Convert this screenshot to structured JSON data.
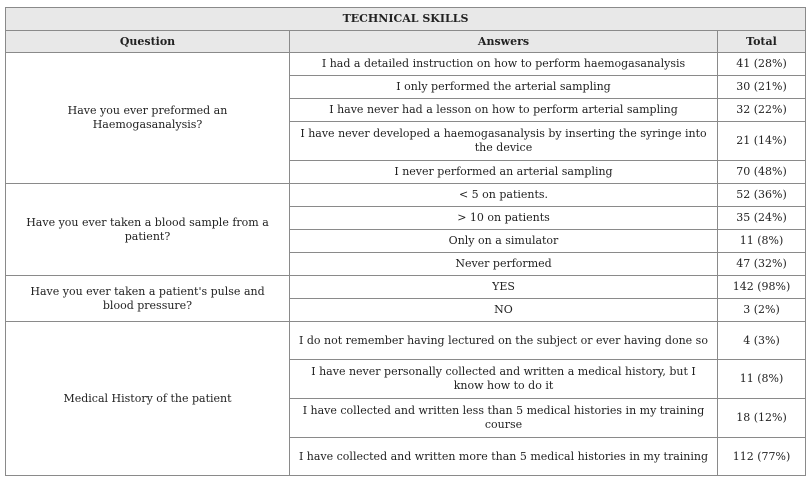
{
  "title": "TECHNICAL SKILLS",
  "headers": {
    "question": "Question",
    "answers": "Answers",
    "total": "Total"
  },
  "groups": [
    {
      "question": "Have you ever preformed an Haemogasanalysis?",
      "rows": [
        {
          "answer": "I had a detailed instruction on how to perform haemogasanalysis",
          "total": "41 (28%)"
        },
        {
          "answer": "I only performed the arterial sampling",
          "total": "30 (21%)"
        },
        {
          "answer": "I have never had a lesson on how to perform arterial sampling",
          "total": "32 (22%)"
        },
        {
          "answer": "I have never developed a haemogasanalysis by inserting the syringe into the device",
          "total": "21 (14%)"
        },
        {
          "answer": "I never performed an arterial sampling",
          "total": "70 (48%)"
        }
      ]
    },
    {
      "question": "Have you ever taken a blood sample from a patient?",
      "rows": [
        {
          "answer": "< 5 on patients.",
          "total": "52 (36%)"
        },
        {
          "answer": "> 10 on patients",
          "total": "35 (24%)"
        },
        {
          "answer": "Only on a simulator",
          "total": "11 (8%)"
        },
        {
          "answer": "Never performed",
          "total": "47 (32%)"
        }
      ]
    },
    {
      "question": "Have you ever taken a patient's pulse and blood pressure?",
      "rows": [
        {
          "answer": "YES",
          "total": "142 (98%)"
        },
        {
          "answer": "NO",
          "total": "3 (2%)"
        }
      ]
    },
    {
      "question": "Medical History of the patient",
      "rows": [
        {
          "answer": "I do not remember having lectured on the subject or ever having done so",
          "total": "4 (3%)"
        },
        {
          "answer": "I have never personally collected and written a medical history, but I know how to do it",
          "total": "11 (8%)"
        },
        {
          "answer": "I have collected and written less than 5 medical histories in my training course",
          "total": "18 (12%)"
        },
        {
          "answer": "I have collected and written more than 5 medical histories in my training",
          "total": "112 (77%)"
        }
      ]
    }
  ]
}
